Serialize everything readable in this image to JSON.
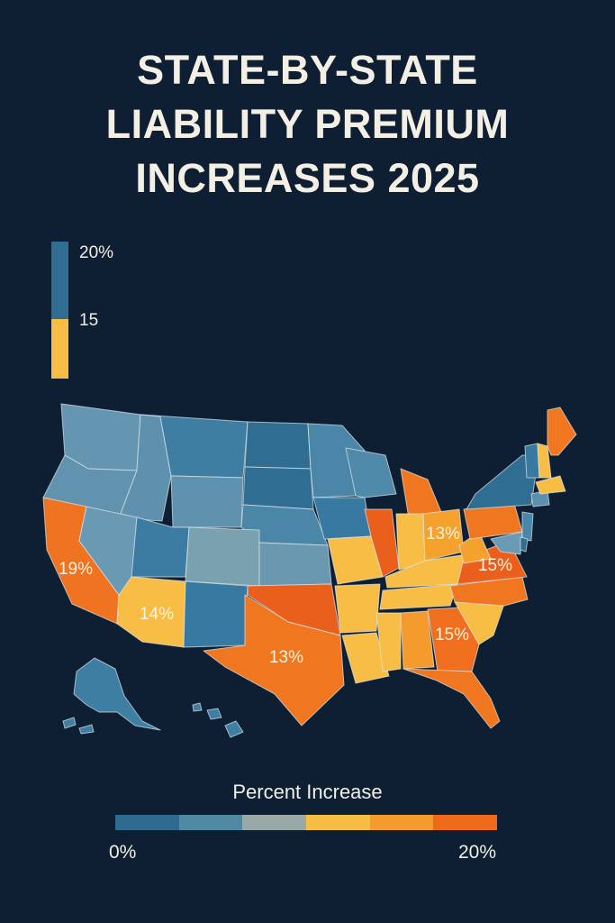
{
  "title": {
    "line1": "STATE-BY-STATE",
    "line2": "LIABILITY PREMIUM",
    "line3": "INCREASES 2025"
  },
  "top_legend": {
    "top_label": "20%",
    "mid_label": "15",
    "colors": [
      "#2f6d92",
      "#f7bd45"
    ]
  },
  "map_labels": {
    "california": "19%",
    "arizona": "14%",
    "texas": "13%",
    "ohio": "13%",
    "virginia": "15%",
    "georgia": "15%"
  },
  "bottom_legend": {
    "title": "Percent Increase",
    "min_label": "0%",
    "max_label": "20%",
    "colors": [
      "#2f6b8f",
      "#4f89a4",
      "#9aa9a8",
      "#f6bd45",
      "#f59a2c",
      "#f06a1c"
    ]
  },
  "palette": {
    "background": "#0e1f33",
    "dark_blue": "#2f6d92",
    "mid_blue": "#4a86a7",
    "light_blue": "#6a9bb5",
    "yellow": "#f7bd45",
    "light_orange": "#f5a12e",
    "orange": "#f0771f",
    "dark_orange": "#ea5f1b"
  },
  "chart_data": {
    "type": "choropleth-map",
    "title": "STATE-BY-STATE LIABILITY PREMIUM INCREASES 2025",
    "legend_title": "Percent Increase",
    "legend_range": [
      "0%",
      "20%"
    ],
    "labeled_values": [
      {
        "region": "california",
        "value": 19
      },
      {
        "region": "arizona",
        "value": 14
      },
      {
        "region": "texas",
        "value": 13
      },
      {
        "region": "ohio",
        "value": 13
      },
      {
        "region": "virginia",
        "value": 15
      },
      {
        "region": "georgia",
        "value": 15
      }
    ]
  }
}
